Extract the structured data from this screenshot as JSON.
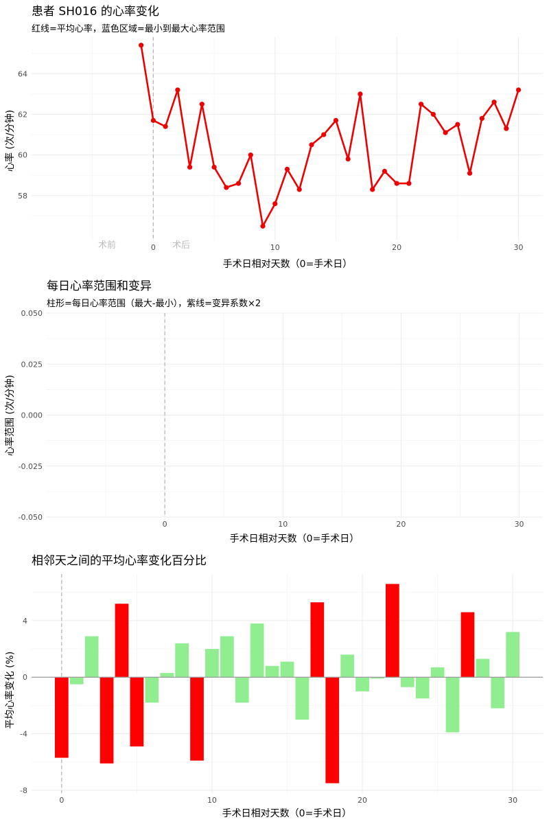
{
  "chart_data": [
    {
      "type": "line",
      "title": "患者 SH016 的心率变化",
      "subtitle": "红线=平均心率，蓝色区域=最小到最大心率范围",
      "xlabel": "手术日相对天数（0=手术日）",
      "ylabel": "心率 (次/分钟)",
      "xlim": [
        -10,
        32
      ],
      "ylim": [
        55.8,
        65.8
      ],
      "x_ticks": [
        0,
        10,
        20,
        30
      ],
      "y_ticks": [
        58,
        60,
        62,
        64
      ],
      "surgery_day": 0,
      "annotations": [
        "术前",
        "术后"
      ],
      "line_color": "#ee0000",
      "x": [
        -1,
        0,
        1,
        2,
        3,
        4,
        5,
        6,
        7,
        8,
        9,
        10,
        11,
        12,
        13,
        14,
        15,
        16,
        17,
        18,
        19,
        20,
        21,
        22,
        23,
        24,
        25,
        26,
        27,
        28,
        29,
        30
      ],
      "values": [
        65.4,
        61.7,
        61.4,
        63.2,
        59.4,
        62.5,
        59.4,
        58.4,
        58.6,
        60.0,
        56.5,
        57.6,
        59.3,
        58.3,
        60.5,
        61.0,
        61.7,
        59.8,
        63.0,
        58.3,
        59.2,
        58.6,
        58.6,
        62.5,
        62.0,
        61.1,
        61.5,
        59.1,
        61.8,
        62.6,
        61.3,
        63.2
      ]
    },
    {
      "type": "bar",
      "title": "每日心率范围和变异",
      "subtitle": "柱形=每日心率范围（最大-最小），紫线=变异系数×2",
      "xlabel": "手术日相对天数（0=手术日）",
      "ylabel": "心率范围 (次/分钟)",
      "xlim": [
        -10,
        32
      ],
      "ylim": [
        -0.05,
        0.05
      ],
      "x_ticks": [
        0,
        10,
        20,
        30
      ],
      "y_ticks": [
        -0.05,
        -0.025,
        0.0,
        0.025,
        0.05
      ],
      "y_tick_labels": [
        "-0.050",
        "-0.025",
        "0.000",
        "0.025",
        "0.050"
      ],
      "surgery_day": 0,
      "values": []
    },
    {
      "type": "bar",
      "title": "相邻天之间的平均心率变化百分比",
      "xlabel": "手术日相对天数（0=手术日）",
      "ylabel": "平均心率变化 (%)",
      "xlim": [
        -2,
        32
      ],
      "ylim": [
        -8.2,
        7.3
      ],
      "x_ticks": [
        0,
        10,
        20,
        30
      ],
      "y_ticks": [
        -8,
        -4,
        0,
        4
      ],
      "surgery_day": 0,
      "colors": {
        "large": "#ff0000",
        "small": "#90ee90"
      },
      "x": [
        0,
        1,
        2,
        3,
        4,
        5,
        6,
        7,
        8,
        9,
        10,
        11,
        12,
        13,
        14,
        15,
        16,
        17,
        18,
        19,
        20,
        21,
        22,
        23,
        24,
        25,
        26,
        27,
        28,
        29,
        30
      ],
      "values": [
        -5.7,
        -0.5,
        2.9,
        -6.1,
        5.2,
        -4.9,
        -1.8,
        0.3,
        2.4,
        -5.9,
        2.0,
        2.9,
        -1.8,
        3.8,
        0.8,
        1.1,
        -3.0,
        5.3,
        -7.5,
        1.6,
        -1.0,
        -0.1,
        6.6,
        -0.7,
        -1.5,
        0.7,
        -3.9,
        4.6,
        1.3,
        -2.2,
        3.2
      ],
      "highlight": [
        true,
        false,
        false,
        true,
        true,
        true,
        false,
        false,
        false,
        true,
        false,
        false,
        false,
        false,
        false,
        false,
        false,
        true,
        true,
        false,
        false,
        false,
        true,
        false,
        false,
        false,
        false,
        true,
        false,
        false,
        false
      ]
    }
  ]
}
